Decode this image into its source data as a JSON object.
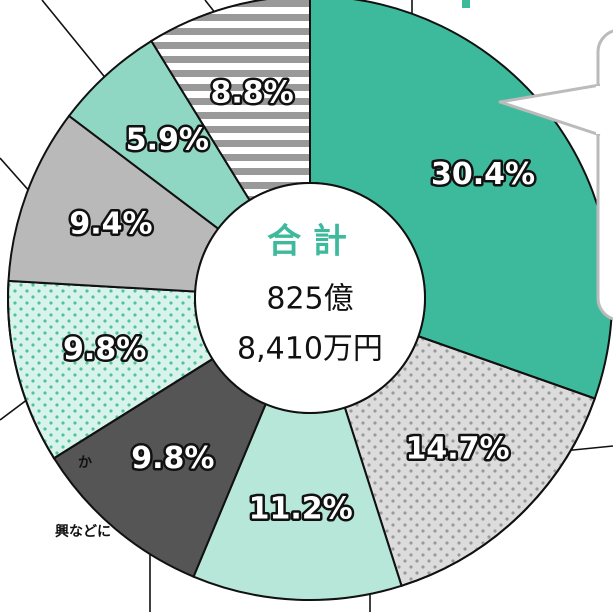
{
  "chart_data": {
    "type": "donut",
    "center_title": "合 計",
    "center_lines": [
      "825億",
      "8,410万円"
    ],
    "values": [
      30.4,
      14.7,
      11.2,
      9.8,
      9.8,
      9.4,
      5.9,
      8.8
    ],
    "value_labels": [
      "30.4%",
      "14.7%",
      "11.2%",
      "9.8%",
      "9.8%",
      "9.4%",
      "5.9%",
      "8.8%"
    ],
    "colors": [
      "#3dba9c",
      "#dcdcdc",
      "#b7e7d8",
      "#555555",
      "#d8f3ea",
      "#b9b9b9",
      "#8fd7c3",
      "#999999"
    ],
    "patterns": [
      "none",
      "dots",
      "none",
      "none",
      "dots",
      "none",
      "none",
      "stripes"
    ],
    "notes": [
      "か",
      "興などに"
    ]
  }
}
